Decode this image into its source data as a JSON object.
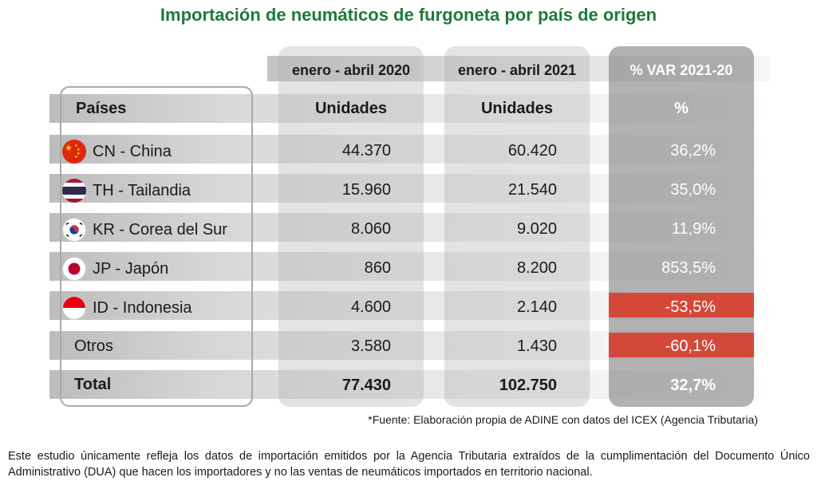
{
  "title": "Importación de neumáticos de furgoneta por país de origen",
  "header": {
    "period_2020": "enero - abril 2020",
    "period_2021": "enero - abril 2021",
    "variation": "% VAR 2021-20",
    "countries": "Países",
    "units_2020": "Unidades",
    "units_2021": "Unidades",
    "pct": "%"
  },
  "rows": [
    {
      "country": "CN - China",
      "flag": "china-flag-icon",
      "u2020": "44.370",
      "u2021": "60.420",
      "var": "36,2%"
    },
    {
      "country": "TH - Tailandia",
      "flag": "thailand-flag-icon",
      "u2020": "15.960",
      "u2021": "21.540",
      "var": "35,0%"
    },
    {
      "country": "KR - Corea del Sur",
      "flag": "south-korea-flag-icon",
      "u2020": "8.060",
      "u2021": "9.020",
      "var": "11,9%"
    },
    {
      "country": "JP - Japón",
      "flag": "japan-flag-icon",
      "u2020": "860",
      "u2021": "8.200",
      "var": "853,5%"
    },
    {
      "country": "ID - Indonesia",
      "flag": "indonesia-flag-icon",
      "u2020": "4.600",
      "u2021": "2.140",
      "var": "-53,5%"
    },
    {
      "country": "Otros",
      "u2020": "3.580",
      "u2021": "1.430",
      "var": "-60,1%"
    }
  ],
  "total": {
    "label": "Total",
    "u2020": "77.430",
    "u2021": "102.750",
    "var": "32,7%"
  },
  "colors": {
    "title": "#1f7a3a",
    "negative_highlight": "#d4483a"
  },
  "source": "*Fuente: Elaboración propia de ADINE con datos del ICEX (Agencia Tributaria)",
  "note": "Este estudio únicamente refleja los datos de importación emitidos por la Agencia Tributaria extraídos de la cumplimentación del Documento Único Administrativo (DUA) que hacen los importadores y no las ventas de neumáticos importados en territorio nacional."
}
